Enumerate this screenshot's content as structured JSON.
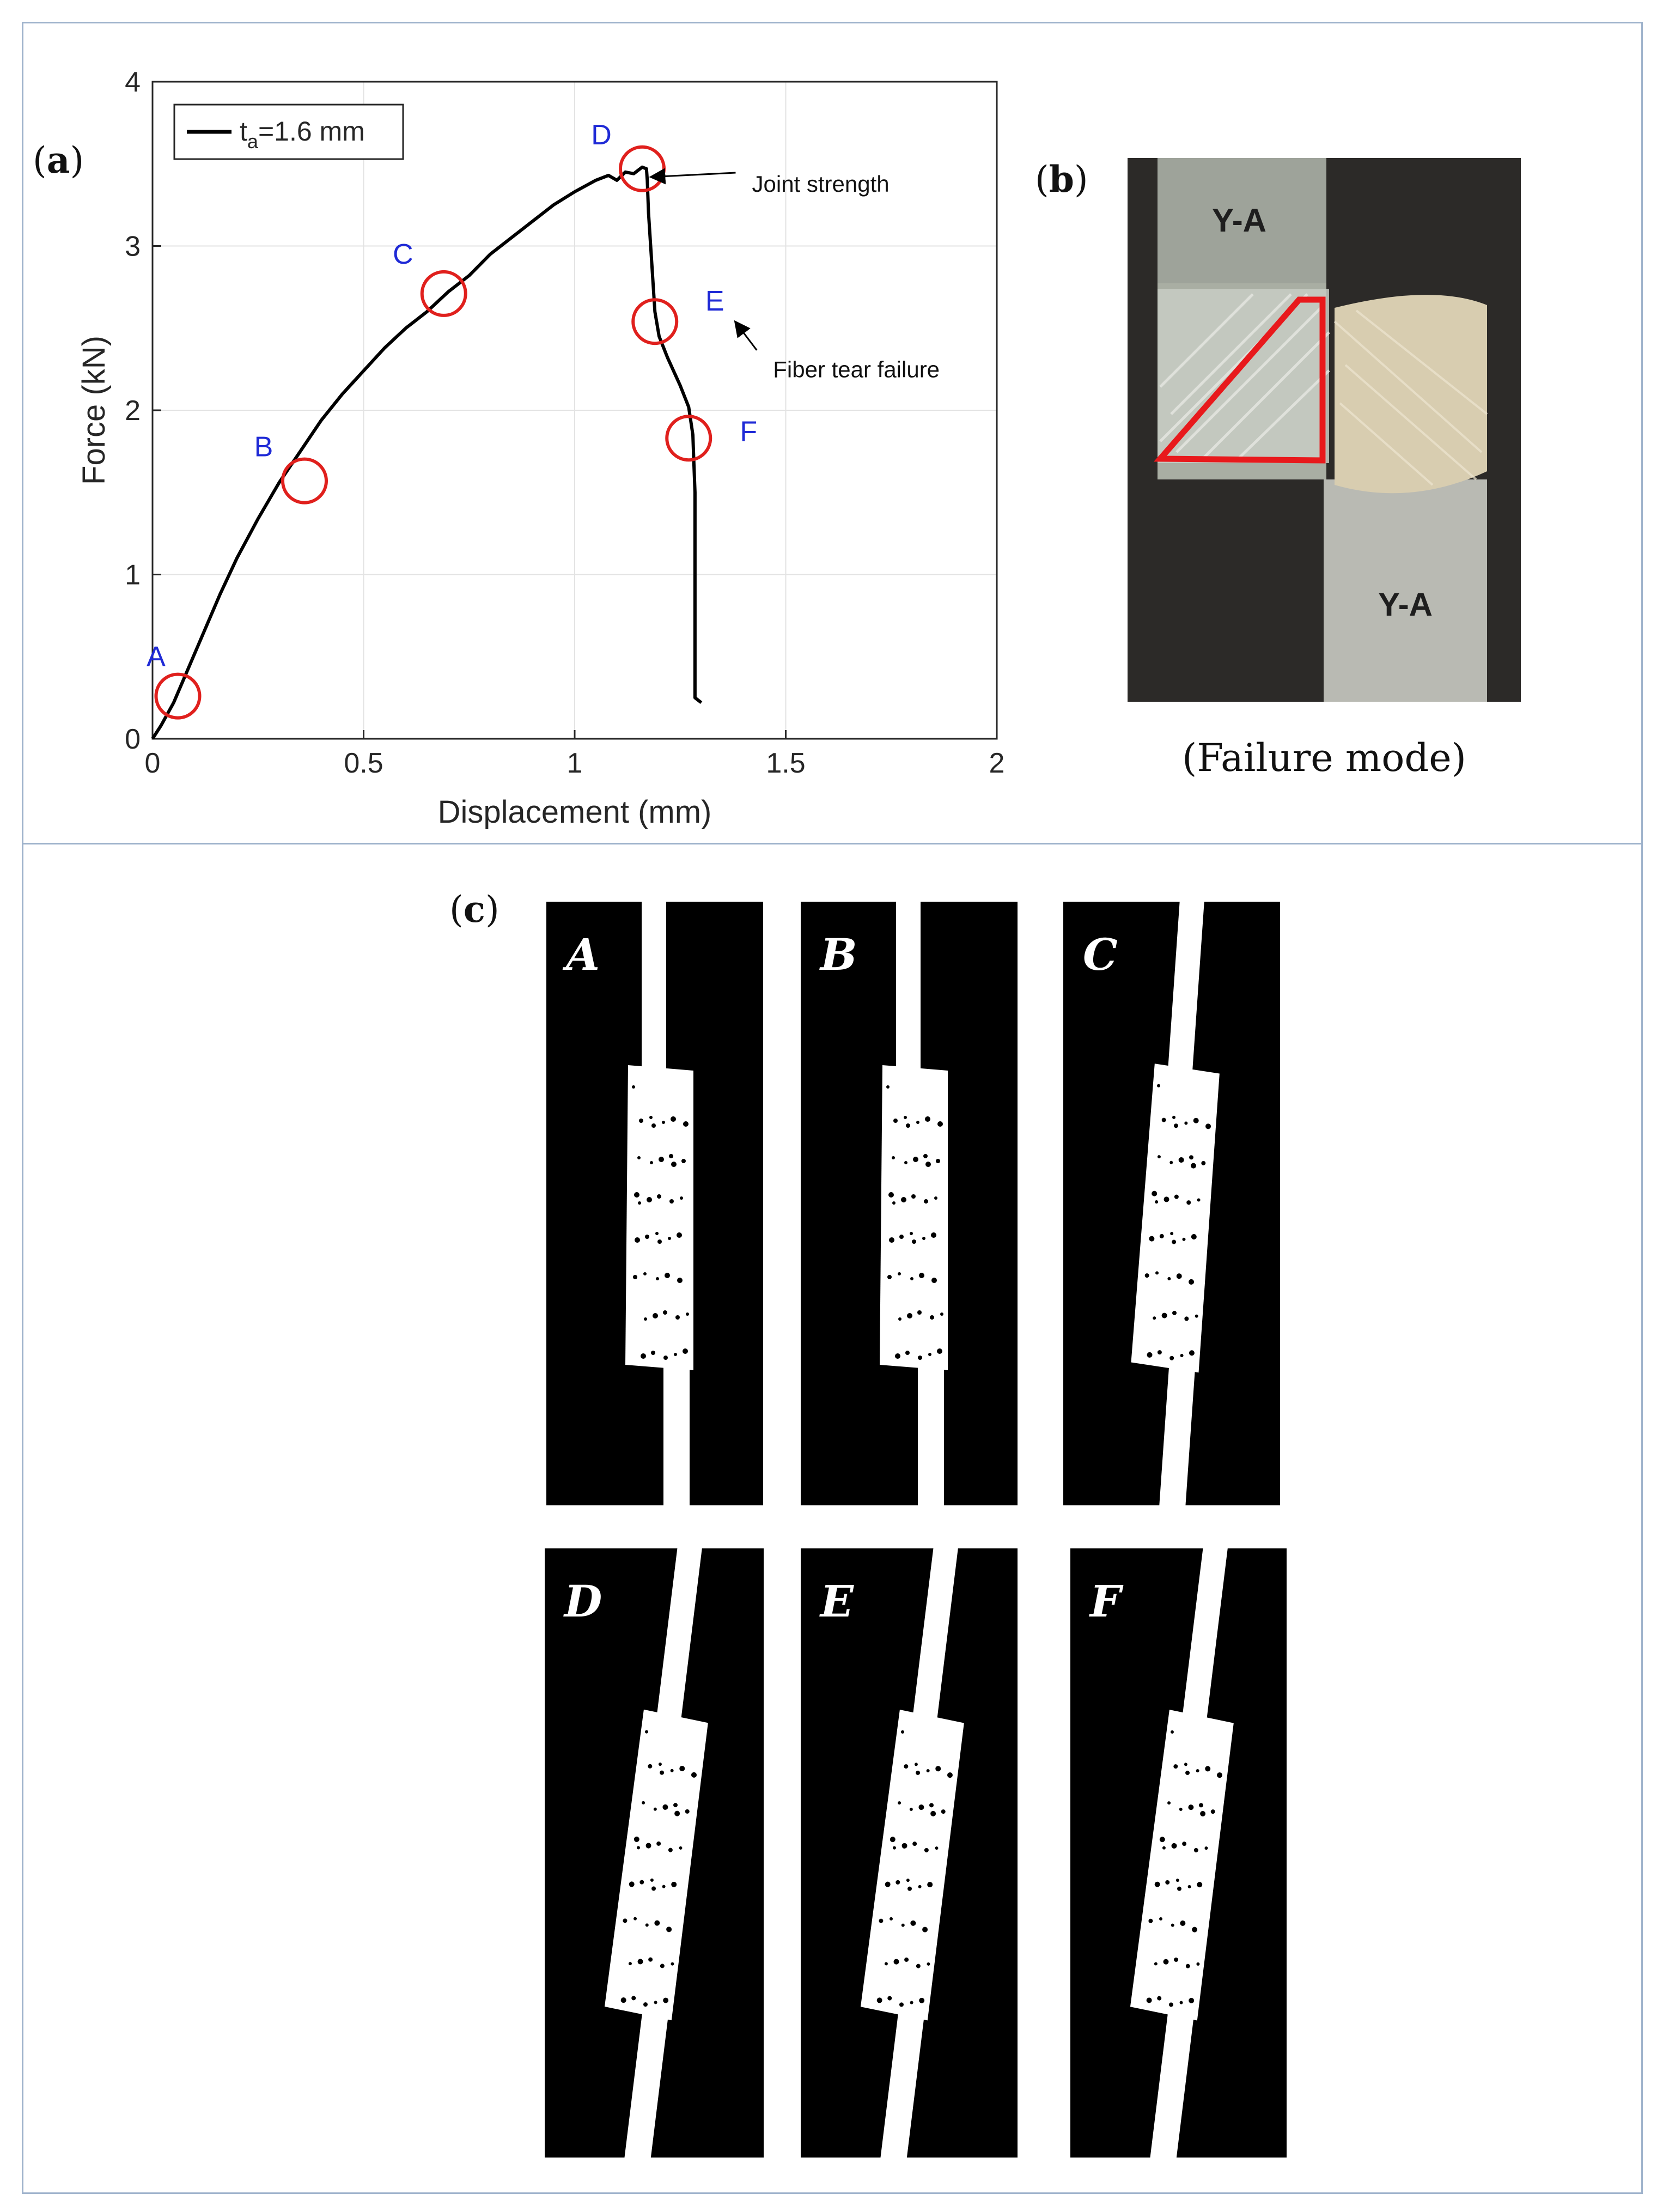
{
  "panels": {
    "a": {
      "open": "(",
      "letter": "a",
      "close": ")"
    },
    "b": {
      "open": "(",
      "letter": "b",
      "close": ")"
    },
    "c": {
      "open": "(",
      "letter": "c",
      "close": ")"
    }
  },
  "chart_data": {
    "type": "line",
    "title": "",
    "xlabel": "Displacement (mm)",
    "ylabel": "Force (kN)",
    "xlim": [
      0,
      2
    ],
    "ylim": [
      0,
      4
    ],
    "xticks": [
      0,
      0.5,
      1,
      1.5,
      2
    ],
    "xtick_labels": [
      "0",
      "0.5",
      "1",
      "1.5",
      "2"
    ],
    "yticks": [
      0,
      1,
      2,
      3,
      4
    ],
    "ytick_labels": [
      "0",
      "1",
      "2",
      "3",
      "4"
    ],
    "grid": true,
    "legend_position": "top-left",
    "series": [
      {
        "name": "t_a=1.6 mm",
        "legend_main": "t",
        "legend_sub": "a",
        "legend_rest": "=1.6 mm",
        "color": "#000000",
        "x": [
          0,
          0.02,
          0.05,
          0.08,
          0.12,
          0.16,
          0.2,
          0.25,
          0.3,
          0.35,
          0.4,
          0.45,
          0.5,
          0.55,
          0.6,
          0.65,
          0.7,
          0.75,
          0.8,
          0.85,
          0.9,
          0.95,
          1.0,
          1.05,
          1.08,
          1.1,
          1.12,
          1.14,
          1.16,
          1.17,
          1.172,
          1.175,
          1.18,
          1.185,
          1.19,
          1.2,
          1.22,
          1.25,
          1.27,
          1.28,
          1.282,
          1.285,
          1.285,
          1.285,
          1.3
        ],
        "y": [
          0,
          0.08,
          0.22,
          0.4,
          0.64,
          0.88,
          1.1,
          1.34,
          1.56,
          1.75,
          1.94,
          2.1,
          2.24,
          2.38,
          2.5,
          2.6,
          2.72,
          2.82,
          2.95,
          3.05,
          3.15,
          3.25,
          3.33,
          3.4,
          3.43,
          3.4,
          3.45,
          3.44,
          3.48,
          3.47,
          3.4,
          3.2,
          3.0,
          2.8,
          2.6,
          2.45,
          2.32,
          2.15,
          2.02,
          1.85,
          1.7,
          1.5,
          1.0,
          0.25,
          0.22
        ]
      }
    ],
    "markers": [
      {
        "label": "A",
        "x": 0.06,
        "y": 0.26
      },
      {
        "label": "B",
        "x": 0.36,
        "y": 1.57
      },
      {
        "label": "C",
        "x": 0.69,
        "y": 2.71
      },
      {
        "label": "D",
        "x": 1.16,
        "y": 3.47
      },
      {
        "label": "E",
        "x": 1.19,
        "y": 2.54
      },
      {
        "label": "F",
        "x": 1.27,
        "y": 1.83
      }
    ],
    "annotations": [
      {
        "text": "Joint strength",
        "arrow_to": {
          "x": 1.18,
          "y": 3.42
        },
        "text_at": {
          "x": 1.42,
          "y": 3.33
        }
      },
      {
        "text": "Fiber tear failure",
        "arrow_to": {
          "x": 1.38,
          "y": 2.54
        },
        "text_at": {
          "x": 1.47,
          "y": 2.2
        }
      }
    ],
    "marker_color": "#e0201d",
    "label_color": "#1f2ad6"
  },
  "photo": {
    "label_top": "Y-A",
    "label_bottom": "Y-A",
    "caption": "(Failure mode)",
    "highlight_color": "#e8191c"
  },
  "tiles": [
    "A",
    "B",
    "C",
    "D",
    "E",
    "F"
  ]
}
